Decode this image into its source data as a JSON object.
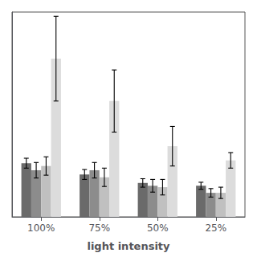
{
  "chart_data": {
    "type": "bar",
    "xlabel": "light intensity",
    "categories": [
      "100%",
      "75%",
      "50%",
      "25%"
    ],
    "series": [
      {
        "color": "#6a6a6a",
        "values": [
          0.38,
          0.3,
          0.24,
          0.22
        ],
        "errors": [
          0.035,
          0.035,
          0.03,
          0.025
        ]
      },
      {
        "color": "#8c8c8c",
        "values": [
          0.33,
          0.33,
          0.22,
          0.17
        ],
        "errors": [
          0.055,
          0.055,
          0.045,
          0.03
        ]
      },
      {
        "color": "#c0c0c0",
        "values": [
          0.36,
          0.28,
          0.21,
          0.17
        ],
        "errors": [
          0.065,
          0.065,
          0.055,
          0.04
        ]
      },
      {
        "color": "#dcdcdc",
        "values": [
          1.12,
          0.82,
          0.5,
          0.4
        ],
        "errors": [
          0.3,
          0.22,
          0.14,
          0.055
        ]
      }
    ],
    "ylim": [
      0,
      1.45
    ],
    "tick_labels": "x",
    "grid": false
  }
}
